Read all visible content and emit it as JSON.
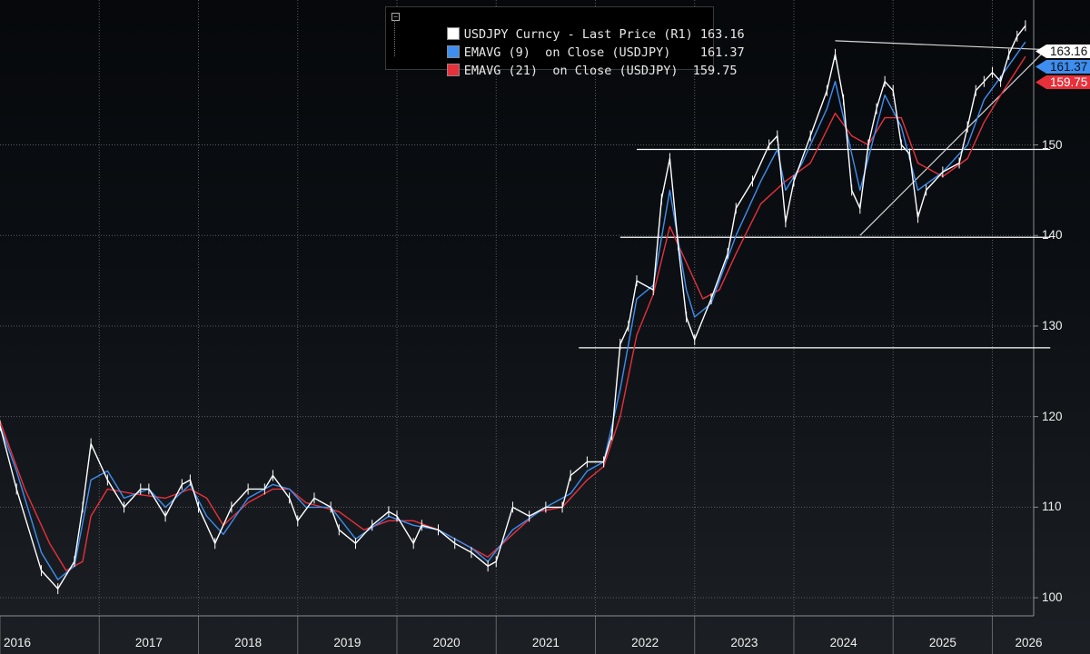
{
  "legend": {
    "collapse_icon": "minus-box-icon",
    "rows": [
      {
        "label": "USDJPY Curncy - Last Price (R1)",
        "value": "163.16",
        "color": "#ffffff"
      },
      {
        "label": "EMAVG (9)  on Close (USDJPY)",
        "value": "161.37",
        "color": "#3e8ef0"
      },
      {
        "label": "EMAVG (21)  on Close (USDJPY)",
        "value": "159.75",
        "color": "#e8303a"
      }
    ]
  },
  "tags": {
    "last": "163.16",
    "ema9": "161.37",
    "ema21": "159.75"
  },
  "chart_data": {
    "type": "line",
    "title": "",
    "xlabel": "",
    "ylabel": "",
    "ylim": [
      98,
      166
    ],
    "y_ticks": [
      100,
      110,
      120,
      130,
      140,
      150
    ],
    "x_ticks": [
      "2016",
      "2017",
      "2018",
      "2019",
      "2020",
      "2021",
      "2022",
      "2023",
      "2024",
      "2025",
      "2026"
    ],
    "x_range": [
      "2016-01",
      "2026-06"
    ],
    "grid": true,
    "legend_position": "top-center",
    "colors": {
      "price": "#ffffff",
      "ema9": "#3e8ef0",
      "ema21": "#e8303a",
      "levels": "#ffffff"
    },
    "series": [
      {
        "name": "USDJPY Curncy - Last Price (R1)",
        "values": [
          [
            "2016-01",
            119
          ],
          [
            "2016-03",
            112
          ],
          [
            "2016-06",
            103
          ],
          [
            "2016-08",
            101
          ],
          [
            "2016-10",
            104
          ],
          [
            "2016-11",
            110
          ],
          [
            "2016-12",
            117
          ],
          [
            "2017-02",
            113
          ],
          [
            "2017-04",
            110
          ],
          [
            "2017-06",
            112
          ],
          [
            "2017-07",
            112
          ],
          [
            "2017-09",
            109
          ],
          [
            "2017-11",
            112.5
          ],
          [
            "2017-12",
            113
          ],
          [
            "2018-01",
            110
          ],
          [
            "2018-03",
            106
          ],
          [
            "2018-05",
            110
          ],
          [
            "2018-07",
            112
          ],
          [
            "2018-09",
            112
          ],
          [
            "2018-10",
            113.5
          ],
          [
            "2018-12",
            111
          ],
          [
            "2019-01",
            108.5
          ],
          [
            "2019-03",
            111
          ],
          [
            "2019-05",
            110
          ],
          [
            "2019-06",
            107.5
          ],
          [
            "2019-08",
            106
          ],
          [
            "2019-10",
            108
          ],
          [
            "2019-12",
            109.5
          ],
          [
            "2020-01",
            109
          ],
          [
            "2020-03",
            106
          ],
          [
            "2020-04",
            108
          ],
          [
            "2020-06",
            107.5
          ],
          [
            "2020-08",
            106
          ],
          [
            "2020-10",
            105
          ],
          [
            "2020-12",
            103.5
          ],
          [
            "2021-01",
            104
          ],
          [
            "2021-03",
            110
          ],
          [
            "2021-05",
            109
          ],
          [
            "2021-07",
            110
          ],
          [
            "2021-09",
            110
          ],
          [
            "2021-10",
            113.5
          ],
          [
            "2021-12",
            115
          ],
          [
            "2022-02",
            115
          ],
          [
            "2022-03",
            118
          ],
          [
            "2022-04",
            128
          ],
          [
            "2022-05",
            130
          ],
          [
            "2022-06",
            135
          ],
          [
            "2022-08",
            134
          ],
          [
            "2022-09",
            144
          ],
          [
            "2022-10",
            148.5
          ],
          [
            "2022-11",
            139
          ],
          [
            "2022-12",
            131
          ],
          [
            "2023-01",
            128.5
          ],
          [
            "2023-03",
            133
          ],
          [
            "2023-05",
            138
          ],
          [
            "2023-06",
            143
          ],
          [
            "2023-08",
            146
          ],
          [
            "2023-10",
            150
          ],
          [
            "2023-11",
            151
          ],
          [
            "2023-12",
            141.5
          ],
          [
            "2024-01",
            146
          ],
          [
            "2024-03",
            151
          ],
          [
            "2024-05",
            156
          ],
          [
            "2024-06",
            160
          ],
          [
            "2024-07",
            155
          ],
          [
            "2024-08",
            145
          ],
          [
            "2024-09",
            143
          ],
          [
            "2024-10",
            150
          ],
          [
            "2024-11",
            154
          ],
          [
            "2024-12",
            157
          ],
          [
            "2025-01",
            156
          ],
          [
            "2025-02",
            150
          ],
          [
            "2025-03",
            149
          ],
          [
            "2025-04",
            142
          ],
          [
            "2025-05",
            145
          ],
          [
            "2025-07",
            147
          ],
          [
            "2025-09",
            148
          ],
          [
            "2025-10",
            152
          ],
          [
            "2025-11",
            156
          ],
          [
            "2025-12",
            157
          ],
          [
            "2026-01",
            158
          ],
          [
            "2026-02",
            157
          ],
          [
            "2026-03",
            160
          ],
          [
            "2026-04",
            162
          ],
          [
            "2026-05",
            163.16
          ]
        ]
      },
      {
        "name": "EMAVG (9)  on Close (USDJPY)",
        "values": [
          [
            "2016-01",
            119
          ],
          [
            "2016-03",
            114
          ],
          [
            "2016-06",
            105
          ],
          [
            "2016-08",
            102
          ],
          [
            "2016-10",
            103.5
          ],
          [
            "2016-12",
            113
          ],
          [
            "2017-02",
            114
          ],
          [
            "2017-04",
            111
          ],
          [
            "2017-07",
            112
          ],
          [
            "2017-09",
            110
          ],
          [
            "2017-12",
            112.5
          ],
          [
            "2018-02",
            109
          ],
          [
            "2018-04",
            107
          ],
          [
            "2018-07",
            111
          ],
          [
            "2018-10",
            112.5
          ],
          [
            "2018-12",
            112
          ],
          [
            "2019-02",
            110
          ],
          [
            "2019-05",
            110
          ],
          [
            "2019-08",
            106.5
          ],
          [
            "2019-12",
            109
          ],
          [
            "2020-03",
            108
          ],
          [
            "2020-06",
            107.5
          ],
          [
            "2020-10",
            105.5
          ],
          [
            "2020-12",
            104
          ],
          [
            "2021-03",
            107.5
          ],
          [
            "2021-07",
            110
          ],
          [
            "2021-10",
            111.5
          ],
          [
            "2021-12",
            114
          ],
          [
            "2022-02",
            115
          ],
          [
            "2022-04",
            123
          ],
          [
            "2022-06",
            133
          ],
          [
            "2022-08",
            134.5
          ],
          [
            "2022-10",
            145
          ],
          [
            "2022-12",
            134
          ],
          [
            "2023-01",
            131
          ],
          [
            "2023-03",
            132.5
          ],
          [
            "2023-06",
            140
          ],
          [
            "2023-09",
            146
          ],
          [
            "2023-11",
            149.5
          ],
          [
            "2023-12",
            145
          ],
          [
            "2024-02",
            148
          ],
          [
            "2024-05",
            154
          ],
          [
            "2024-06",
            157
          ],
          [
            "2024-08",
            149
          ],
          [
            "2024-09",
            145
          ],
          [
            "2024-11",
            152
          ],
          [
            "2024-12",
            155.5
          ],
          [
            "2025-02",
            152
          ],
          [
            "2025-04",
            145
          ],
          [
            "2025-07",
            147
          ],
          [
            "2025-10",
            150
          ],
          [
            "2025-12",
            155
          ],
          [
            "2026-02",
            157.5
          ],
          [
            "2026-05",
            161.37
          ]
        ]
      },
      {
        "name": "EMAVG (21)  on Close (USDJPY)",
        "values": [
          [
            "2016-01",
            119.5
          ],
          [
            "2016-04",
            112
          ],
          [
            "2016-07",
            106
          ],
          [
            "2016-09",
            103
          ],
          [
            "2016-11",
            104
          ],
          [
            "2016-12",
            109
          ],
          [
            "2017-02",
            112
          ],
          [
            "2017-05",
            111.5
          ],
          [
            "2017-09",
            111
          ],
          [
            "2017-12",
            112
          ],
          [
            "2018-02",
            111
          ],
          [
            "2018-04",
            108
          ],
          [
            "2018-07",
            110.5
          ],
          [
            "2018-10",
            112
          ],
          [
            "2018-12",
            112
          ],
          [
            "2019-02",
            110.5
          ],
          [
            "2019-06",
            109.5
          ],
          [
            "2019-09",
            107.5
          ],
          [
            "2019-12",
            108.5
          ],
          [
            "2020-03",
            108.5
          ],
          [
            "2020-06",
            107.5
          ],
          [
            "2020-09",
            106
          ],
          [
            "2020-12",
            104.5
          ],
          [
            "2021-03",
            107
          ],
          [
            "2021-06",
            109.5
          ],
          [
            "2021-09",
            110
          ],
          [
            "2021-12",
            113
          ],
          [
            "2022-02",
            114.5
          ],
          [
            "2022-04",
            120
          ],
          [
            "2022-06",
            129
          ],
          [
            "2022-08",
            133.5
          ],
          [
            "2022-10",
            141
          ],
          [
            "2022-12",
            137
          ],
          [
            "2023-02",
            133
          ],
          [
            "2023-04",
            134
          ],
          [
            "2023-06",
            138
          ],
          [
            "2023-09",
            143.5
          ],
          [
            "2023-12",
            146
          ],
          [
            "2024-03",
            148
          ],
          [
            "2024-06",
            153.5
          ],
          [
            "2024-08",
            151
          ],
          [
            "2024-10",
            150
          ],
          [
            "2024-12",
            153
          ],
          [
            "2025-02",
            153
          ],
          [
            "2025-04",
            148
          ],
          [
            "2025-07",
            146.5
          ],
          [
            "2025-10",
            148.5
          ],
          [
            "2025-12",
            152.5
          ],
          [
            "2026-02",
            155.5
          ],
          [
            "2026-05",
            159.75
          ]
        ]
      }
    ],
    "annotations": [
      {
        "type": "hline",
        "y": 149.5,
        "from": "2022-06",
        "to": "2026-08"
      },
      {
        "type": "hline",
        "y": 139.8,
        "from": "2022-04",
        "to": "2026-08"
      },
      {
        "type": "hline",
        "y": 127.6,
        "from": "2021-11",
        "to": "2026-08"
      },
      {
        "type": "trendline",
        "points": [
          [
            "2024-06",
            161.5
          ],
          [
            "2026-08",
            160.5
          ]
        ]
      },
      {
        "type": "trendline",
        "points": [
          [
            "2024-09",
            140
          ],
          [
            "2026-08",
            161
          ]
        ]
      }
    ]
  }
}
